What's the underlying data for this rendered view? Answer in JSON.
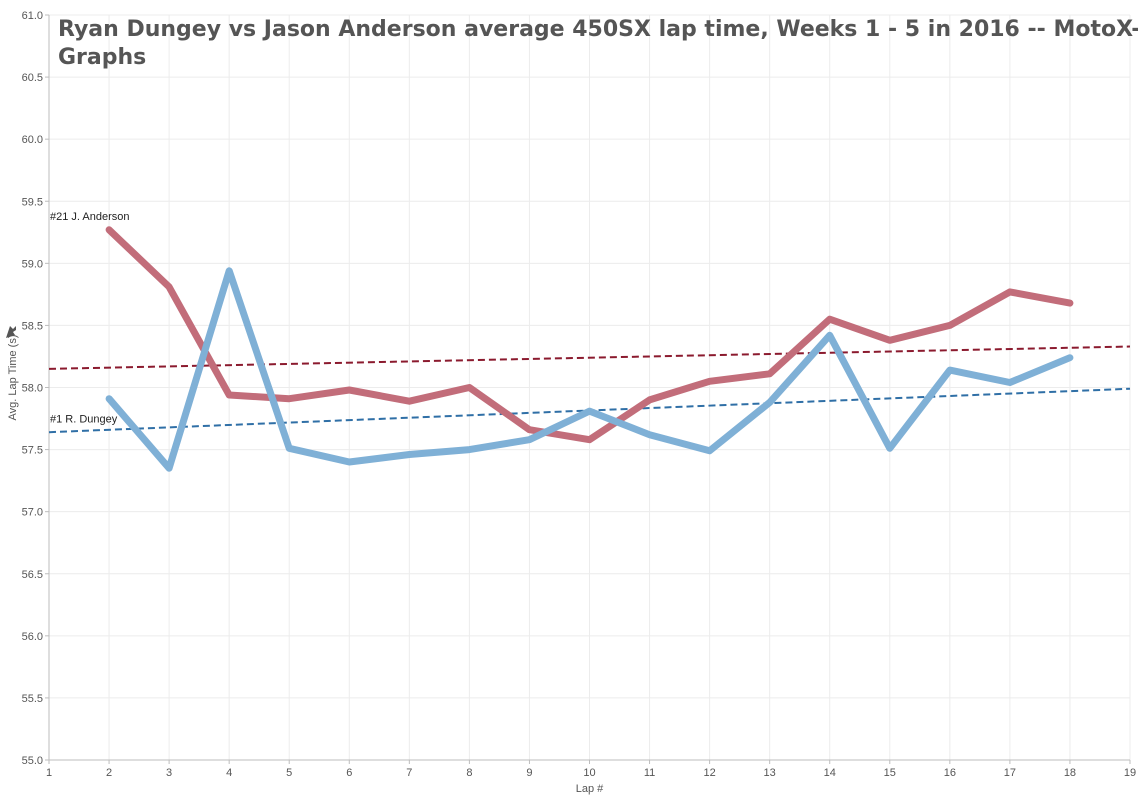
{
  "chart_data": {
    "type": "line",
    "title": "Ryan Dungey vs Jason Anderson average 450SX lap time, Weeks 1 - 5 in 2016 -- MotoX-Graphs",
    "title_lines": [
      "Ryan Dungey vs Jason Anderson average 450SX lap time, Weeks 1 - 5 in 2016 -- MotoX-",
      "Graphs"
    ],
    "xlabel": "Lap #",
    "ylabel": "Avg. Lap Time (s)",
    "xlim": [
      1,
      19
    ],
    "ylim": [
      55.0,
      61.0
    ],
    "x_ticks": [
      "1",
      "2",
      "3",
      "4",
      "5",
      "6",
      "7",
      "8",
      "9",
      "10",
      "11",
      "12",
      "13",
      "14",
      "15",
      "16",
      "17",
      "18",
      "19"
    ],
    "y_ticks": [
      "55.0",
      "55.5",
      "56.0",
      "56.5",
      "57.0",
      "57.5",
      "58.0",
      "58.5",
      "59.0",
      "59.5",
      "60.0",
      "60.5",
      "61.0"
    ],
    "grid": true,
    "series": [
      {
        "name": "#21 J. Anderson",
        "color": "#c26d7a",
        "trend_color": "#8b1a2e",
        "x": [
          2,
          3,
          4,
          5,
          6,
          7,
          8,
          9,
          10,
          11,
          12,
          13,
          14,
          15,
          16,
          17,
          18
        ],
        "values": [
          59.27,
          58.81,
          57.94,
          57.91,
          57.98,
          57.89,
          58.0,
          57.66,
          57.58,
          57.9,
          58.05,
          58.11,
          58.55,
          58.38,
          58.5,
          58.77,
          58.68
        ],
        "trend": [
          [
            1,
            58.15
          ],
          [
            19,
            58.33
          ]
        ]
      },
      {
        "name": "#1 R. Dungey",
        "color": "#7fb0d6",
        "trend_color": "#2f6fa6",
        "x": [
          2,
          3,
          4,
          5,
          6,
          7,
          8,
          9,
          10,
          11,
          12,
          13,
          14,
          15,
          16,
          17,
          18
        ],
        "values": [
          57.91,
          57.35,
          58.94,
          57.51,
          57.4,
          57.46,
          57.5,
          57.58,
          57.81,
          57.62,
          57.49,
          57.88,
          58.42,
          57.51,
          58.14,
          58.04,
          58.24
        ],
        "trend": [
          [
            1,
            57.64
          ],
          [
            19,
            57.99
          ]
        ]
      }
    ]
  }
}
